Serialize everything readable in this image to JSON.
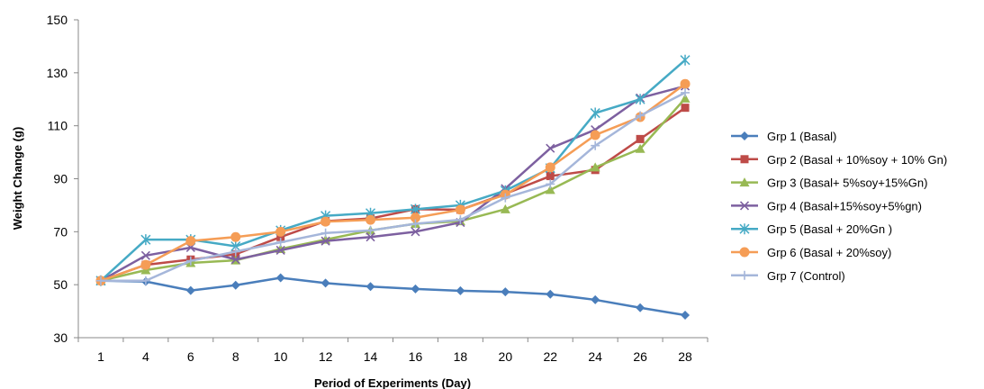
{
  "chart_data": {
    "type": "line",
    "title": "",
    "xlabel": "Period of Experiments (Day)",
    "ylabel": "Weight Change (g)",
    "categories": [
      "1",
      "4",
      "6",
      "8",
      "10",
      "12",
      "14",
      "16",
      "18",
      "20",
      "22",
      "24",
      "26",
      "28"
    ],
    "ylim": [
      30,
      150
    ],
    "yticks": [
      30,
      50,
      70,
      90,
      110,
      130,
      150
    ],
    "grid": false,
    "legend_position": "right",
    "series": [
      {
        "name": "Grp 1 (Basal)",
        "color": "#4A7EBB",
        "marker": "diamond",
        "values": [
          51.5,
          51.2,
          47.8,
          49.8,
          52.6,
          50.6,
          49.3,
          48.4,
          47.7,
          47.3,
          46.4,
          44.3,
          41.3,
          38.5
        ]
      },
      {
        "name": "Grp 2 (Basal + 10%soy + 10% Gn)",
        "color": "#BE4B48",
        "marker": "square",
        "values": [
          51.5,
          57.5,
          59.5,
          61.5,
          68.0,
          74.0,
          75.0,
          78.5,
          78.3,
          84.3,
          91.0,
          93.3,
          105.0,
          116.8
        ]
      },
      {
        "name": "Grp 3 (Basal+ 5%soy+15%Gn)",
        "color": "#98B954",
        "marker": "triangle",
        "values": [
          51.5,
          55.5,
          58.2,
          59.2,
          63.5,
          67.0,
          70.5,
          73.0,
          74.0,
          78.5,
          85.8,
          94.3,
          101.3,
          120.3
        ]
      },
      {
        "name": "Grp 4 (Basal+15%soy+5%gn)",
        "color": "#7D60A0",
        "marker": "x",
        "values": [
          51.5,
          61.0,
          64.0,
          59.5,
          63.0,
          66.5,
          68.0,
          70.0,
          73.5,
          86.3,
          101.5,
          108.5,
          120.5,
          125.0
        ]
      },
      {
        "name": "Grp 5 (Basal + 20%Gn )",
        "color": "#46AAC5",
        "marker": "star",
        "values": [
          51.5,
          67.0,
          67.0,
          64.5,
          70.5,
          76.0,
          77.0,
          78.5,
          80.0,
          85.5,
          94.0,
          114.8,
          120.0,
          134.8
        ]
      },
      {
        "name": "Grp 6 (Basal + 20%soy)",
        "color": "#F59D56",
        "marker": "circle",
        "values": [
          51.5,
          57.5,
          66.5,
          68.0,
          70.0,
          73.8,
          74.5,
          75.3,
          78.3,
          84.0,
          94.3,
          106.5,
          113.3,
          125.8
        ]
      },
      {
        "name": "Grp 7 (Control)",
        "color": "#A5B6DA",
        "marker": "plus",
        "values": [
          51.5,
          51.5,
          59.0,
          62.5,
          66.0,
          69.5,
          70.5,
          73.0,
          74.5,
          82.8,
          88.0,
          102.5,
          113.8,
          122.5
        ]
      }
    ]
  }
}
